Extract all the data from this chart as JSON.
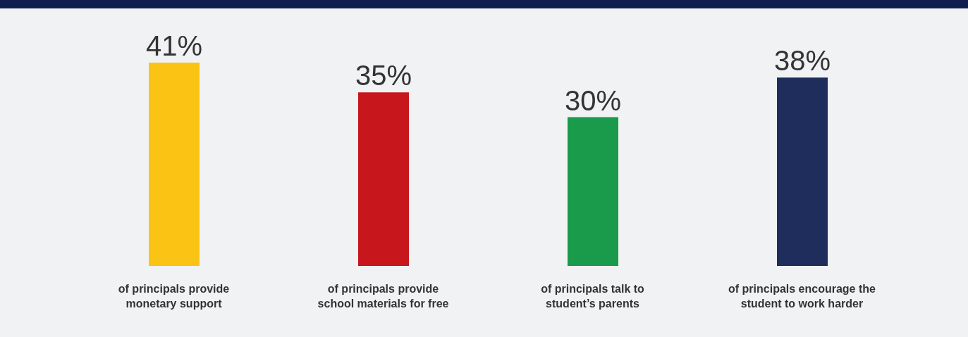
{
  "chart_data": {
    "type": "bar",
    "categories": [
      "of principals provide monetary support",
      "of principals provide school materials for free",
      "of principals talk to student’s parents",
      "of principals encourage the student to work harder"
    ],
    "values": [
      41,
      35,
      30,
      38
    ],
    "colors": [
      "#fbc314",
      "#c8161d",
      "#1a9a4b",
      "#1f2d5c"
    ],
    "value_labels": [
      "41%",
      "35%",
      "30%",
      "38%"
    ]
  }
}
